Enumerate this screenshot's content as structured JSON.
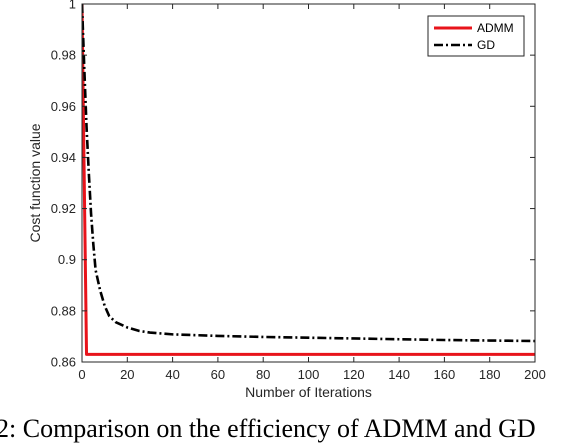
{
  "caption": "2: Comparison on the efficiency of ADMM and GD",
  "chart_data": {
    "type": "line",
    "title": "",
    "xlabel": "Number of Iterations",
    "ylabel": "Cost function value",
    "xlim": [
      0,
      200
    ],
    "ylim": [
      0.86,
      1.0
    ],
    "xticks": [
      0,
      20,
      40,
      60,
      80,
      100,
      120,
      140,
      160,
      180,
      200
    ],
    "yticks": [
      0.86,
      0.88,
      0.9,
      0.92,
      0.94,
      0.96,
      0.98,
      1
    ],
    "ytick_labels": [
      "0.86",
      "0.88",
      "0.9",
      "0.92",
      "0.94",
      "0.96",
      "0.98",
      "1"
    ],
    "grid": false,
    "legend_position": "top-right",
    "series": [
      {
        "name": "ADMM",
        "color": "#e8141b",
        "style": "solid",
        "x": [
          0,
          1,
          2,
          3,
          200
        ],
        "y": [
          1.0,
          0.93,
          0.863,
          0.863,
          0.863
        ]
      },
      {
        "name": "GD",
        "color": "#000000",
        "style": "dash-dot",
        "x": [
          0,
          1,
          2,
          3,
          4,
          5,
          6,
          8,
          10,
          12,
          15,
          20,
          25,
          30,
          40,
          60,
          80,
          100,
          120,
          140,
          160,
          180,
          200
        ],
        "y": [
          1.0,
          0.975,
          0.952,
          0.934,
          0.918,
          0.906,
          0.896,
          0.888,
          0.882,
          0.878,
          0.8755,
          0.8735,
          0.8722,
          0.8715,
          0.8708,
          0.8702,
          0.8698,
          0.8695,
          0.8692,
          0.8689,
          0.8686,
          0.8684,
          0.8682
        ]
      }
    ]
  }
}
